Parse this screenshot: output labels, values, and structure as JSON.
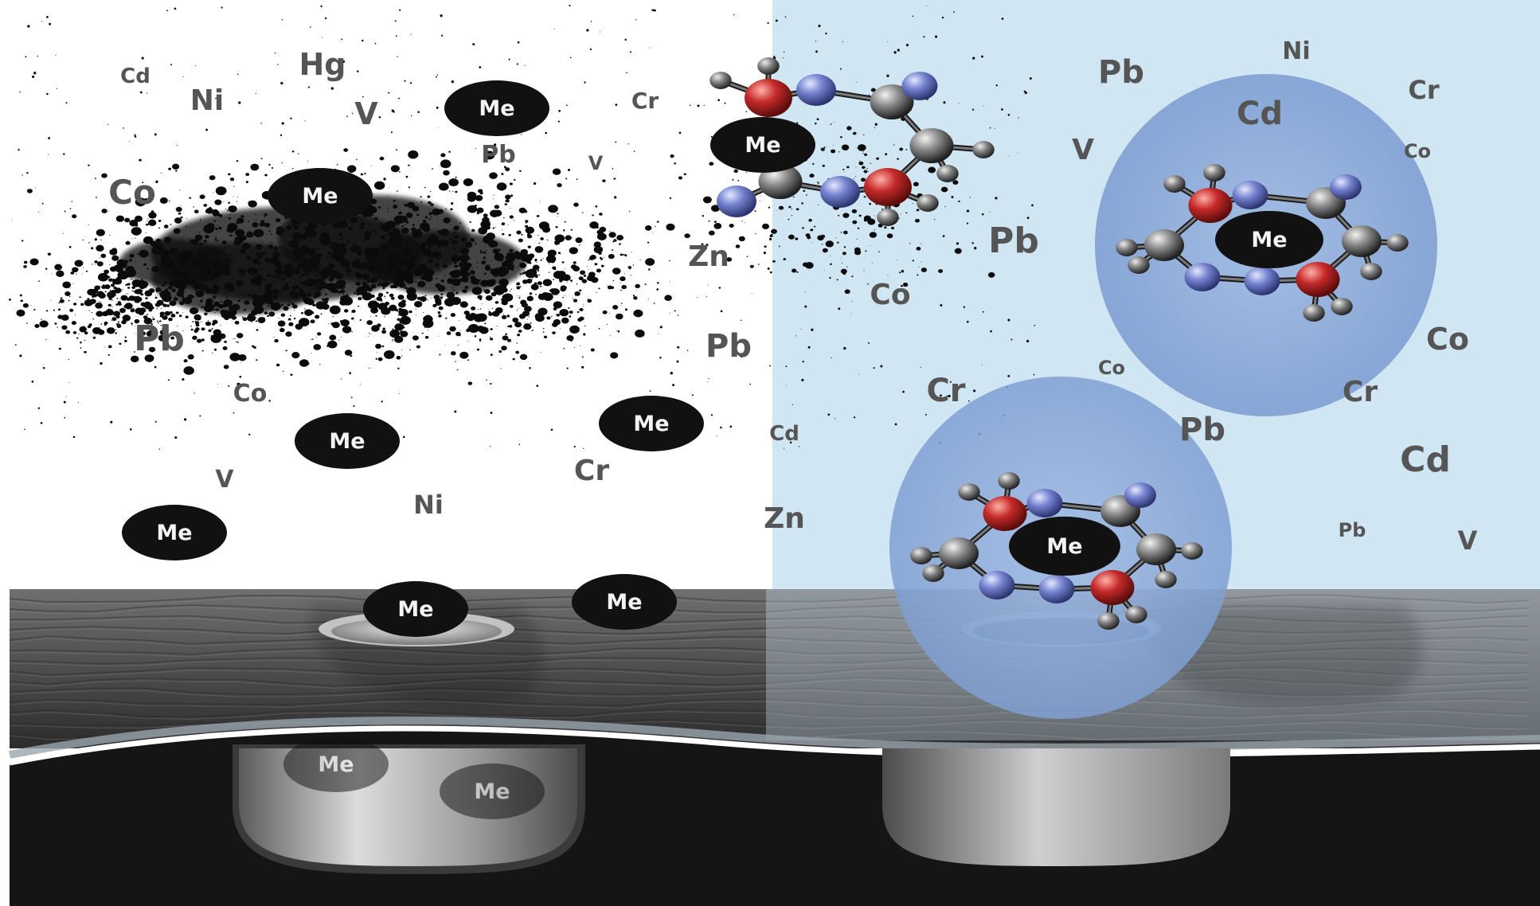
{
  "colors": {
    "left_bg": "#ffffff",
    "right_bg": "#d0e6f3",
    "soot": "#0b0b0b",
    "element_text": "#555555",
    "me_disc": "#111111",
    "me_text": "#f4f4f4",
    "chelate_halo": "#8aaad6",
    "carbon_atom": "#3a3a3a",
    "oxygen_atom": "#b3232a",
    "nitrogen_atom": "#5d6fc4",
    "hydrogen_atom": "#6e6e6e",
    "skin_surface": "#5b5b5b",
    "skin_deep": "#151515"
  },
  "me_label": "Me",
  "left_elements": [
    {
      "text": "Cd"
    },
    {
      "text": "Hg"
    },
    {
      "text": "Ni"
    },
    {
      "text": "V"
    },
    {
      "text": "Cr"
    },
    {
      "text": "Pb"
    },
    {
      "text": "V"
    },
    {
      "text": "Co"
    },
    {
      "text": "Zn"
    },
    {
      "text": "Pb"
    },
    {
      "text": "Pb"
    },
    {
      "text": "Co"
    },
    {
      "text": "Cd"
    },
    {
      "text": "V"
    },
    {
      "text": "Cr"
    },
    {
      "text": "Ni"
    },
    {
      "text": "Zn"
    }
  ],
  "right_elements": [
    {
      "text": "Pb"
    },
    {
      "text": "Ni"
    },
    {
      "text": "Cr"
    },
    {
      "text": "Cd"
    },
    {
      "text": "Co"
    },
    {
      "text": "V"
    },
    {
      "text": "Pb"
    },
    {
      "text": "Co"
    },
    {
      "text": "Co"
    },
    {
      "text": "Cr"
    },
    {
      "text": "Co"
    },
    {
      "text": "Cr"
    },
    {
      "text": "Pb"
    },
    {
      "text": "Cd"
    },
    {
      "text": "Pb"
    },
    {
      "text": "V"
    }
  ],
  "icons": {
    "metal_ion": "metal-ion-icon",
    "chelator_molecule": "chelator-molecule-icon",
    "soot_particles": "particulate-matter-icon",
    "hair_follicle": "hair-follicle-icon"
  }
}
